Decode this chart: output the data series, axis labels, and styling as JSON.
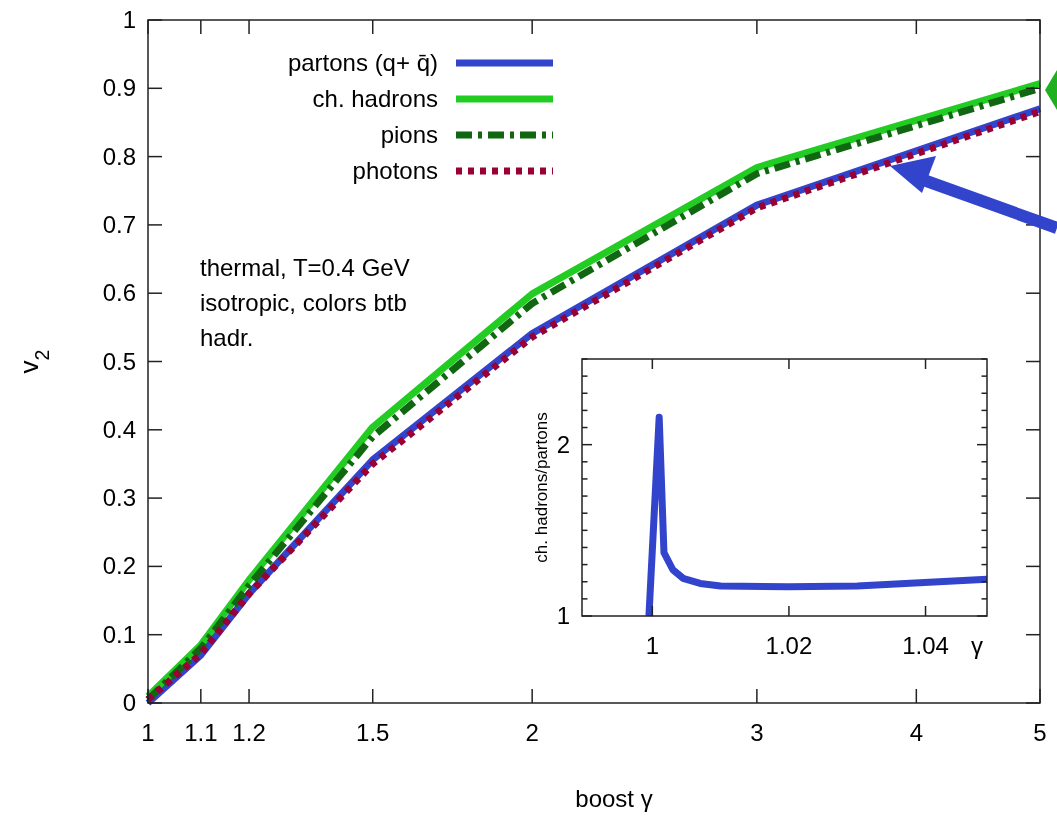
{
  "chart_data": [
    {
      "type": "line",
      "xlabel": "boost γ",
      "ylabel": "v$_{2}$",
      "log": "x",
      "xlim": [
        1,
        5
      ],
      "ylim": [
        0,
        1
      ],
      "xticks": [
        1,
        1.1,
        1.2,
        1.5,
        2,
        3,
        4,
        5
      ],
      "yticks": [
        0,
        0.1,
        0.2,
        0.3,
        0.4,
        0.5,
        0.6,
        0.7,
        0.8,
        0.9,
        1
      ],
      "legend": "top left",
      "grid": false,
      "annotations": [
        "thermal, T=0.4 GeV",
        "isotropic, colors btb",
        "hadr."
      ],
      "series": [
        {
          "name": "partons (q+ q̄)",
          "color": "#3344cc",
          "line_style": "solid",
          "x": [
            1,
            1.1,
            1.2,
            1.5,
            2,
            3,
            5
          ],
          "values": [
            0,
            0.07,
            0.16,
            0.356,
            0.541,
            0.729,
            0.87
          ]
        },
        {
          "name": "ch. hadrons",
          "color": "#22cc22",
          "line_style": "solid",
          "x": [
            1,
            1.1,
            1.2,
            1.5,
            2,
            3,
            5
          ],
          "values": [
            0.01,
            0.085,
            0.18,
            0.404,
            0.599,
            0.784,
            0.907
          ]
        },
        {
          "name": "pions",
          "color": "#116611",
          "line_style": "dashdot",
          "x": [
            1,
            1.1,
            1.2,
            1.5,
            2,
            3,
            5
          ],
          "values": [
            0.005,
            0.08,
            0.172,
            0.39,
            0.585,
            0.775,
            0.9
          ]
        },
        {
          "name": "photons",
          "color": "#990033",
          "line_style": "dotted",
          "x": [
            1,
            1.1,
            1.2,
            1.5,
            2,
            3,
            5
          ],
          "values": [
            0.005,
            0.072,
            0.16,
            0.35,
            0.536,
            0.725,
            0.866
          ]
        }
      ]
    },
    {
      "type": "line",
      "xlabel": "γ",
      "ylabel": "ch. hadrons/partons",
      "xlim": [
        0.9897,
        1.049
      ],
      "ylim": [
        1,
        2.5
      ],
      "xticks": [
        1,
        1.02,
        1.04
      ],
      "yticks": [
        1,
        {
          "value": 1.1,
          "label": null
        },
        {
          "value": 1.2,
          "label": null
        },
        {
          "value": 1.3,
          "label": null
        },
        {
          "value": 1.4,
          "label": null
        },
        {
          "value": 1.5,
          "label": null
        },
        {
          "value": 1.6,
          "label": null
        },
        {
          "value": 1.7,
          "label": null
        },
        {
          "value": 1.8,
          "label": null
        },
        {
          "value": 1.9,
          "label": null
        },
        2,
        {
          "value": 2.1,
          "label": null
        },
        {
          "value": 2.2,
          "label": null
        },
        {
          "value": 2.3,
          "label": null
        },
        {
          "value": 2.4,
          "label": null
        },
        {
          "value": 2.5,
          "label": null
        }
      ],
      "series": [
        {
          "color": "#3344cc",
          "line_style": "solid",
          "x": [
            0.9995,
            1.001,
            1.0017,
            1.003,
            1.0045,
            1.007,
            1.01,
            1.02,
            1.03,
            1.049
          ],
          "values": [
            1,
            2.16,
            1.37,
            1.27,
            1.22,
            1.19,
            1.175,
            1.17,
            1.175,
            1.215
          ]
        }
      ]
    }
  ]
}
